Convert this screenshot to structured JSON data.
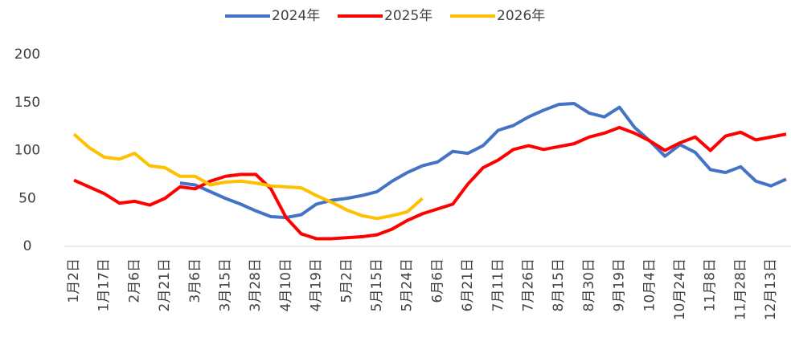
{
  "chart_data": {
    "type": "line",
    "categories": [
      "1月2日",
      null,
      "1月17日",
      null,
      "2月6日",
      null,
      "2月21日",
      null,
      "3月6日",
      null,
      "3月15日",
      null,
      "3月28日",
      null,
      "4月10日",
      null,
      "4月19日",
      null,
      "5月2日",
      null,
      "5月15日",
      null,
      "5月24日",
      null,
      "6月6日",
      null,
      "6月21日",
      null,
      "7月11日",
      null,
      "7月26日",
      null,
      "8月15日",
      null,
      "8月30日",
      null,
      "9月19日",
      null,
      "10月4日",
      null,
      "10月24日",
      null,
      "11月8日",
      null,
      "11月28日",
      null,
      "12月13日",
      null
    ],
    "series": [
      {
        "name": "2024年",
        "color": "#4472c4",
        "values": [
          null,
          null,
          null,
          null,
          null,
          null,
          null,
          66,
          64,
          57,
          50,
          44,
          37,
          31,
          30,
          33,
          44,
          48,
          50,
          53,
          57,
          68,
          77,
          84,
          88,
          99,
          97,
          105,
          121,
          126,
          135,
          142,
          148,
          149,
          139,
          135,
          145,
          124,
          110,
          94,
          106,
          98,
          80,
          77,
          83,
          68,
          63,
          70
        ]
      },
      {
        "name": "2025年",
        "color": "#ff0000",
        "values": [
          69,
          62,
          55,
          45,
          47,
          43,
          50,
          62,
          60,
          68,
          73,
          75,
          75,
          60,
          30,
          13,
          8,
          8,
          9,
          10,
          12,
          18,
          27,
          34,
          39,
          44,
          65,
          82,
          90,
          101,
          105,
          101,
          104,
          107,
          114,
          118,
          124,
          118,
          110,
          100,
          108,
          114,
          100,
          115,
          119,
          111,
          114,
          117
        ]
      },
      {
        "name": "2026年",
        "color": "#ffc000",
        "values": [
          117,
          103,
          93,
          91,
          97,
          84,
          82,
          73,
          73,
          64,
          67,
          68,
          66,
          63,
          62,
          61,
          53,
          46,
          38,
          32,
          29,
          32,
          36,
          50,
          null,
          null,
          null,
          null,
          null,
          null,
          null,
          null,
          null,
          null,
          null,
          null,
          null,
          null,
          null,
          null,
          null,
          null,
          null,
          null,
          null,
          null,
          null,
          null
        ]
      }
    ],
    "ylim": [
      0,
      200
    ],
    "yticks": [
      0,
      50,
      100,
      150,
      200
    ],
    "legend": "top"
  }
}
